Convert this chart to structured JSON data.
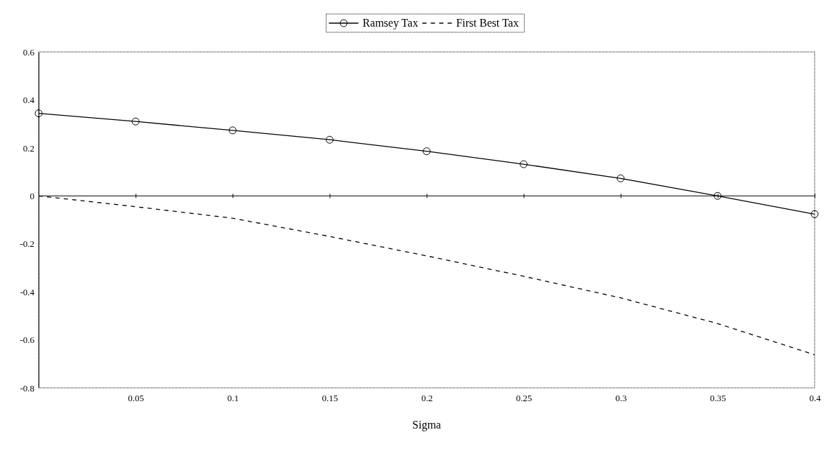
{
  "chart_data": {
    "type": "line",
    "xlabel": "Sigma",
    "x": [
      0,
      0.05,
      0.1,
      0.15,
      0.2,
      0.25,
      0.3,
      0.35,
      0.4
    ],
    "series": [
      {
        "name": "Ramsey Tax",
        "color": "#000000",
        "marker": "circle",
        "line_style": "solid",
        "values": [
          0.344,
          0.31,
          0.273,
          0.234,
          0.186,
          0.132,
          0.073,
          0,
          -0.076
        ]
      },
      {
        "name": "First Best Tax",
        "color": "#000000",
        "marker": "none",
        "line_style": "dashed",
        "values": [
          0,
          -0.045,
          -0.093,
          -0.169,
          -0.25,
          -0.335,
          -0.425,
          -0.532,
          -0.662
        ]
      }
    ],
    "xlim": [
      0,
      0.4
    ],
    "xticks": [
      0.05,
      0.1,
      0.15,
      0.2,
      0.25,
      0.3,
      0.35,
      0.4
    ],
    "ylim": [
      -0.8,
      0.6
    ],
    "yticks": [
      -0.8,
      -0.6,
      -0.4,
      -0.2,
      0,
      0.2,
      0.4,
      0.6
    ],
    "ref_lines": [
      {
        "axis": "y",
        "value": 0
      }
    ],
    "grid": false,
    "legend": "top"
  }
}
